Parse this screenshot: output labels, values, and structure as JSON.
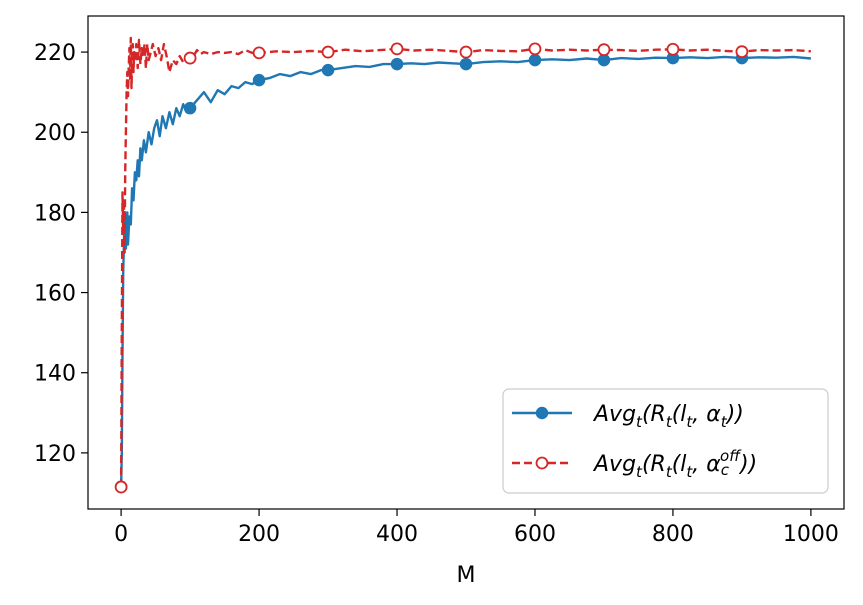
{
  "chart_data": {
    "type": "line",
    "xlabel": "M",
    "ylabel": "",
    "xlim": [
      -48,
      1048
    ],
    "ylim": [
      106,
      229
    ],
    "xticks": [
      0,
      200,
      400,
      600,
      800,
      1000
    ],
    "yticks": [
      120,
      140,
      160,
      180,
      200,
      220
    ],
    "grid": false,
    "legend_position": "bottom-right",
    "series": [
      {
        "name": "Avg_t(R_t(l_t, α_t))",
        "legend_parts": [
          "Avg",
          "t",
          "(R",
          "t",
          "(l",
          "t",
          ", α",
          "t",
          "))"
        ],
        "color": "#1f77b4",
        "style": "solid",
        "marker": "filled-circle",
        "marker_x": [
          0,
          100,
          200,
          300,
          400,
          500,
          600,
          700,
          800,
          900
        ],
        "x": [
          0,
          1,
          2,
          3,
          4,
          5,
          6,
          7,
          8,
          9,
          10,
          12,
          14,
          16,
          18,
          20,
          22,
          24,
          26,
          28,
          30,
          33,
          36,
          40,
          44,
          48,
          52,
          56,
          60,
          65,
          70,
          75,
          80,
          85,
          90,
          95,
          100,
          110,
          120,
          130,
          140,
          150,
          160,
          170,
          180,
          190,
          200,
          215,
          230,
          245,
          260,
          275,
          290,
          300,
          320,
          340,
          360,
          380,
          400,
          420,
          440,
          460,
          480,
          500,
          525,
          550,
          575,
          600,
          625,
          650,
          675,
          700,
          725,
          750,
          775,
          800,
          825,
          850,
          875,
          900,
          925,
          950,
          975,
          1000
        ],
        "y": [
          111.5,
          120,
          145,
          165,
          172,
          179,
          177,
          171,
          176,
          180,
          172,
          179,
          177,
          186,
          183,
          190,
          188,
          193,
          189,
          196,
          193,
          198,
          195,
          200,
          197,
          201,
          203,
          199,
          204,
          201,
          205,
          202,
          206,
          204,
          207,
          205,
          206,
          208,
          210,
          207.5,
          210.5,
          209.5,
          211.5,
          211,
          212.5,
          212,
          213,
          213.5,
          214.5,
          214,
          215,
          214.5,
          215.5,
          215.5,
          216,
          216.5,
          216.3,
          217,
          217,
          217.2,
          217,
          217.4,
          217.2,
          217,
          217.5,
          217.7,
          217.5,
          218,
          218.2,
          218,
          218.4,
          218,
          218.5,
          218.3,
          218.6,
          218.5,
          218.7,
          218.5,
          218.8,
          218.5,
          218.7,
          218.6,
          218.8,
          218.4
        ]
      },
      {
        "name": "Avg_t(R_t(l_t, α_c^off))",
        "legend_parts": [
          "Avg",
          "t",
          "(R",
          "t",
          "(l",
          "t",
          ", α",
          "c",
          "off",
          "))"
        ],
        "color": "#d62728",
        "style": "dashed",
        "marker": "open-circle",
        "marker_x": [
          0,
          100,
          200,
          300,
          400,
          500,
          600,
          700,
          800,
          900
        ],
        "x": [
          0,
          1,
          2,
          3,
          4,
          5,
          6,
          7,
          8,
          9,
          10,
          11,
          12,
          13,
          14,
          15,
          16,
          17,
          18,
          19,
          20,
          22,
          24,
          26,
          28,
          30,
          32,
          34,
          36,
          38,
          40,
          43,
          46,
          50,
          54,
          58,
          62,
          66,
          70,
          75,
          80,
          85,
          90,
          95,
          100,
          105,
          110,
          115,
          120,
          130,
          140,
          150,
          160,
          170,
          180,
          190,
          200,
          225,
          250,
          275,
          300,
          325,
          350,
          375,
          400,
          425,
          450,
          475,
          500,
          525,
          550,
          575,
          600,
          625,
          650,
          675,
          700,
          725,
          750,
          775,
          800,
          825,
          850,
          875,
          900,
          925,
          950,
          975,
          1000
        ],
        "y": [
          111.5,
          150,
          185,
          175,
          182,
          170,
          190,
          200,
          210,
          215,
          209,
          216,
          221,
          213,
          223.5,
          211,
          218,
          222,
          215,
          220,
          218,
          222,
          216,
          223,
          217,
          221,
          219,
          222,
          216,
          222,
          218,
          220,
          222,
          219,
          221,
          218,
          222,
          219,
          215,
          218,
          217,
          219,
          217.5,
          219,
          218.5,
          219,
          220.5,
          219.5,
          220,
          219.5,
          220,
          219.8,
          220,
          219.5,
          220.5,
          219.8,
          219.8,
          220.2,
          220,
          220.3,
          220,
          220.6,
          220.2,
          220.5,
          220.8,
          220.4,
          220.6,
          220.3,
          220,
          220.5,
          220.3,
          220.2,
          220.8,
          220.4,
          220.6,
          220.4,
          220.6,
          220.5,
          220.3,
          220.6,
          220.7,
          220.4,
          220.6,
          220.3,
          220.1,
          220.5,
          220.4,
          220.5,
          220.2
        ]
      }
    ]
  }
}
